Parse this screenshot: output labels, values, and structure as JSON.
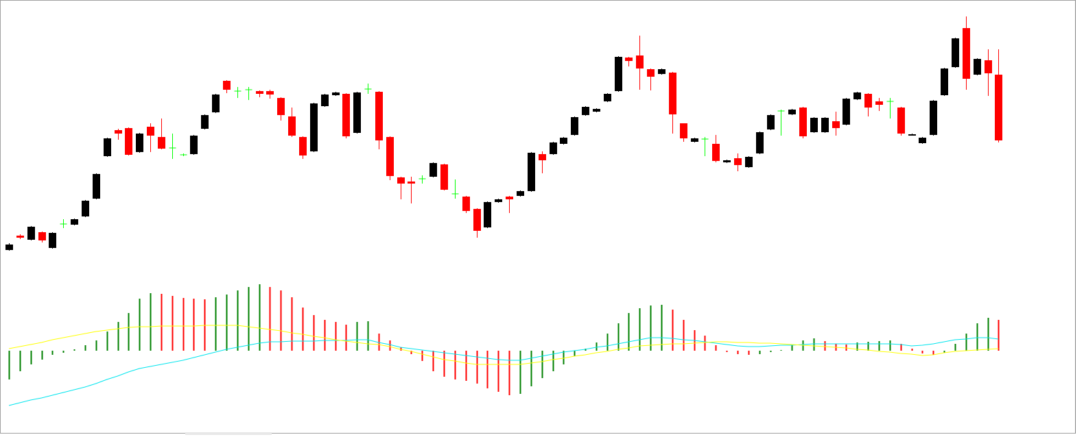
{
  "chart_data": [
    {
      "type": "candlestick",
      "open": [
        35,
        56,
        50,
        61,
        38,
        73,
        72,
        84,
        110,
        172,
        210,
        213,
        178,
        215,
        200,
        184,
        174,
        175,
        212,
        236,
        282,
        267,
        269,
        267,
        267,
        257,
        230,
        200,
        179,
        245,
        261,
        263,
        206,
        270,
        266,
        200,
        141,
        135,
        139,
        142,
        160,
        117,
        113,
        95,
        68,
        105,
        113,
        114,
        121,
        175,
        175,
        190,
        203,
        232,
        237,
        252,
        267,
        316,
        319,
        299,
        292,
        294,
        220,
        193,
        197,
        190,
        163,
        169,
        156,
        176,
        211,
        238,
        233,
        243,
        207,
        207,
        223,
        218,
        255,
        263,
        252,
        252,
        243,
        203,
        191,
        203,
        261,
        302,
        359,
        291,
        312,
        291
      ],
      "high": [
        45,
        58,
        70,
        62,
        61,
        80,
        81,
        108,
        147,
        199,
        212,
        214,
        206,
        220,
        227,
        205,
        176,
        203,
        233,
        263,
        283,
        273,
        273,
        268,
        269,
        258,
        243,
        201,
        250,
        263,
        266,
        264,
        266,
        278,
        267,
        201,
        142,
        142,
        144,
        163,
        161,
        138,
        114,
        96,
        106,
        110,
        114,
        122,
        178,
        179,
        193,
        200,
        230,
        245,
        242,
        264,
        318,
        317,
        348,
        300,
        300,
        295,
        220,
        199,
        200,
        203,
        167,
        176,
        172,
        208,
        233,
        240,
        241,
        244,
        229,
        229,
        237,
        257,
        266,
        264,
        257,
        257,
        244,
        205,
        200,
        254,
        301,
        345,
        376,
        315,
        328,
        328
      ],
      "low": [
        34,
        51,
        49,
        46,
        37,
        67,
        71,
        83,
        109,
        171,
        196,
        173,
        177,
        178,
        182,
        168,
        172,
        174,
        211,
        235,
        264,
        257,
        254,
        258,
        256,
        224,
        200,
        168,
        178,
        244,
        260,
        198,
        205,
        263,
        182,
        137,
        109,
        103,
        132,
        141,
        122,
        110,
        89,
        53,
        67,
        104,
        89,
        113,
        120,
        147,
        174,
        189,
        202,
        231,
        236,
        251,
        266,
        303,
        269,
        268,
        291,
        205,
        193,
        192,
        172,
        163,
        162,
        150,
        155,
        175,
        210,
        202,
        232,
        198,
        206,
        206,
        202,
        217,
        254,
        230,
        238,
        227,
        202,
        202,
        190,
        202,
        260,
        301,
        269,
        290,
        260,
        192
      ],
      "close": [
        43,
        53,
        69,
        49,
        60,
        73,
        80,
        107,
        146,
        198,
        205,
        174,
        205,
        202,
        183,
        184,
        174,
        202,
        232,
        262,
        269,
        267,
        269,
        263,
        262,
        232,
        202,
        173,
        249,
        262,
        265,
        201,
        265,
        270,
        195,
        143,
        132,
        132,
        139,
        162,
        123,
        117,
        92,
        63,
        105,
        109,
        109,
        121,
        177,
        166,
        192,
        199,
        229,
        244,
        241,
        263,
        317,
        311,
        300,
        288,
        299,
        233,
        198,
        198,
        197,
        165,
        166,
        159,
        171,
        207,
        232,
        238,
        240,
        201,
        228,
        228,
        213,
        256,
        265,
        243,
        247,
        252,
        205,
        204,
        199,
        253,
        300,
        344,
        285,
        314,
        293,
        195
      ],
      "up_color": "#000000",
      "down_color": "#ff0000",
      "doji_color": "#00ff00",
      "ylim": [
        0,
        400
      ]
    },
    {
      "type": "histogram",
      "values": [
        -42,
        -30,
        -20,
        -13,
        -6,
        -3,
        2,
        8,
        15,
        28,
        42,
        55,
        76,
        84,
        83,
        80,
        77,
        76,
        75,
        78,
        82,
        88,
        93,
        97,
        93,
        88,
        78,
        63,
        52,
        45,
        42,
        38,
        42,
        43,
        25,
        15,
        5,
        -5,
        -15,
        -30,
        -38,
        -42,
        -44,
        -48,
        -55,
        -60,
        -65,
        -63,
        -52,
        -40,
        -30,
        -20,
        -8,
        3,
        12,
        25,
        40,
        55,
        62,
        66,
        67,
        60,
        45,
        30,
        22,
        8,
        -2,
        -5,
        -6,
        -5,
        -2,
        1,
        8,
        15,
        18,
        14,
        10,
        9,
        12,
        13,
        14,
        15,
        10,
        3,
        -4,
        -6,
        -3,
        10,
        25,
        40,
        48,
        45
      ],
      "rising_color": "#008000",
      "falling_color": "#ff0000",
      "series": [
        {
          "color": "#00e5ee",
          "values": [
            -80,
            -76,
            -72,
            -69,
            -65,
            -61,
            -57,
            -53,
            -48,
            -42,
            -37,
            -31,
            -26,
            -23,
            -20,
            -17,
            -14,
            -10,
            -6,
            -2,
            2,
            5,
            8,
            11,
            13,
            13,
            14,
            14,
            14,
            15,
            15,
            15,
            16,
            16,
            12,
            9,
            5,
            3,
            1,
            -1,
            -3,
            -5,
            -7,
            -9,
            -11,
            -13,
            -14,
            -14,
            -11,
            -8,
            -5,
            -2,
            0,
            2,
            5,
            7,
            10,
            13,
            16,
            19,
            19,
            18,
            16,
            15,
            13,
            11,
            9,
            7,
            6,
            6,
            7,
            8,
            8,
            9,
            10,
            10,
            10,
            10,
            10,
            10,
            10,
            10,
            9,
            7,
            8,
            10,
            13,
            16,
            17,
            19,
            19,
            17
          ]
        },
        {
          "color": "#ffff00",
          "values": [
            3,
            6,
            9,
            12,
            16,
            19,
            22,
            25,
            28,
            30,
            32,
            34,
            35,
            35,
            36,
            36,
            36,
            36,
            37,
            37,
            37,
            37,
            35,
            33,
            31,
            29,
            26,
            24,
            21,
            19,
            16,
            14,
            12,
            10,
            9,
            6,
            2,
            -1,
            -5,
            -9,
            -13,
            -15,
            -18,
            -20,
            -20,
            -20,
            -20,
            -20,
            -18,
            -16,
            -13,
            -11,
            -8,
            -6,
            -3,
            -1,
            2,
            4,
            7,
            8,
            9,
            10,
            10,
            11,
            12,
            13,
            13,
            12,
            12,
            11,
            11,
            10,
            9,
            8,
            7,
            6,
            5,
            4,
            2,
            1,
            -1,
            -2,
            -4,
            -5,
            -7,
            -6,
            -3,
            -1,
            0,
            1,
            2,
            3
          ]
        }
      ],
      "ylim": [
        -120,
        112
      ]
    }
  ]
}
